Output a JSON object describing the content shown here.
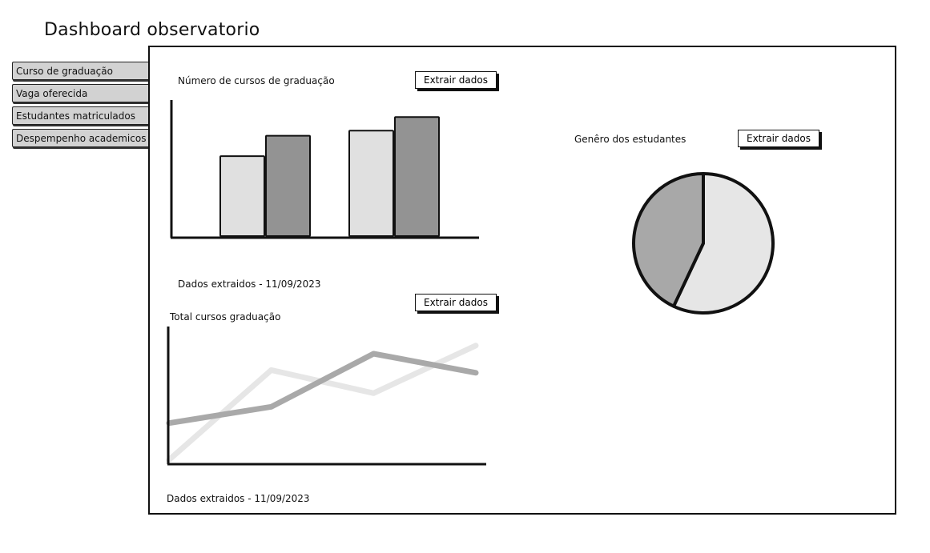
{
  "header": {
    "title": "Dashboard observatorio"
  },
  "sidebar": {
    "items": [
      {
        "label": "Curso de graduação"
      },
      {
        "label": "Vaga oferecida"
      },
      {
        "label": "Estudantes matriculados"
      },
      {
        "label": "Despempenho academicos"
      }
    ]
  },
  "main": {
    "bar_card": {
      "title": "Número de cursos de graduação",
      "extract_label": "Extrair dados",
      "footer": "Dados extraidos - 11/09/2023"
    },
    "line_card": {
      "title": "Total cursos graduação",
      "extract_label": "Extrair dados",
      "footer": "Dados extraidos - 11/09/2023"
    },
    "pie_card": {
      "title": "Genêro dos estudantes",
      "extract_label": "Extrair dados"
    }
  },
  "colors": {
    "light": "#e0e0e0",
    "dark": "#939393",
    "line_light": "#e6e6e6",
    "line_dark": "#a9a9a9",
    "pie_light": "#e6e6e6",
    "pie_dark": "#a8a8a8"
  },
  "chart_data": [
    {
      "type": "bar",
      "title": "Número de cursos de graduação",
      "categories": [
        "",
        ""
      ],
      "series": [
        {
          "values": [
            47,
            62
          ]
        },
        {
          "values": [
            59,
            70
          ]
        }
      ],
      "ylim": [
        0,
        80
      ]
    },
    {
      "type": "line",
      "title": "Total cursos graduação",
      "x": [
        0,
        1,
        2,
        3
      ],
      "series": [
        {
          "values": [
            2,
            68,
            51,
            86
          ]
        },
        {
          "values": [
            29,
            41,
            80,
            66
          ]
        }
      ],
      "ylim": [
        0,
        100
      ]
    },
    {
      "type": "pie",
      "title": "Genêro dos estudantes",
      "values": [
        57,
        43
      ]
    }
  ]
}
